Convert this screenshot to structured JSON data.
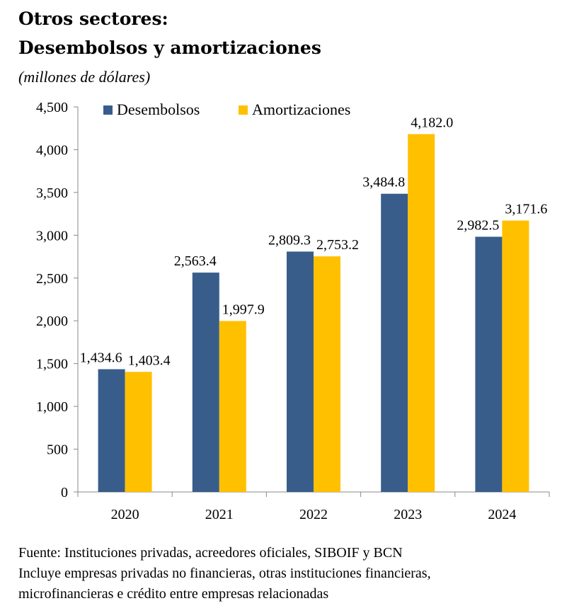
{
  "header": {
    "title_line1": "Otros sectores:",
    "title_line2": "Desembolsos y amortizaciones",
    "subtitle": "(millones de dólares)"
  },
  "footer": {
    "source": "Fuente:  Instituciones privadas, acreedores oficiales, SIBOIF y BCN",
    "note_line1": "Incluye empresas privadas no financieras, otras instituciones financieras,",
    "note_line2": "microfinancieras e crédito entre empresas relacionadas"
  },
  "chart_data": {
    "type": "bar",
    "title": "Otros sectores: Desembolsos y amortizaciones",
    "subtitle": "(millones de dólares)",
    "categories": [
      "2020",
      "2021",
      "2022",
      "2023",
      "2024"
    ],
    "series": [
      {
        "name": "Desembolsos",
        "color": "#385D8A",
        "values": [
          1434.6,
          2563.4,
          2809.3,
          3484.8,
          2982.5
        ],
        "labels": [
          "1,434.6",
          "2,563.4",
          "2,809.3",
          "3,484.8",
          "2,982.5"
        ]
      },
      {
        "name": "Amortizaciones",
        "color": "#FFC000",
        "values": [
          1403.4,
          1997.9,
          2753.2,
          4182.0,
          3171.6
        ],
        "labels": [
          "1,403.4",
          "1,997.9",
          "2,753.2",
          "4,182.0",
          "3,171.6"
        ]
      }
    ],
    "ylim": [
      0,
      4500
    ],
    "yticks": [
      0,
      500,
      1000,
      1500,
      2000,
      2500,
      3000,
      3500,
      4000,
      4500
    ],
    "ytick_labels": [
      "0",
      "500",
      "1,000",
      "1,500",
      "2,000",
      "2,500",
      "3,000",
      "3,500",
      "4,000",
      "4,500"
    ],
    "xlabel": "",
    "ylabel": "",
    "grid": false,
    "legend_position": "top-left"
  }
}
